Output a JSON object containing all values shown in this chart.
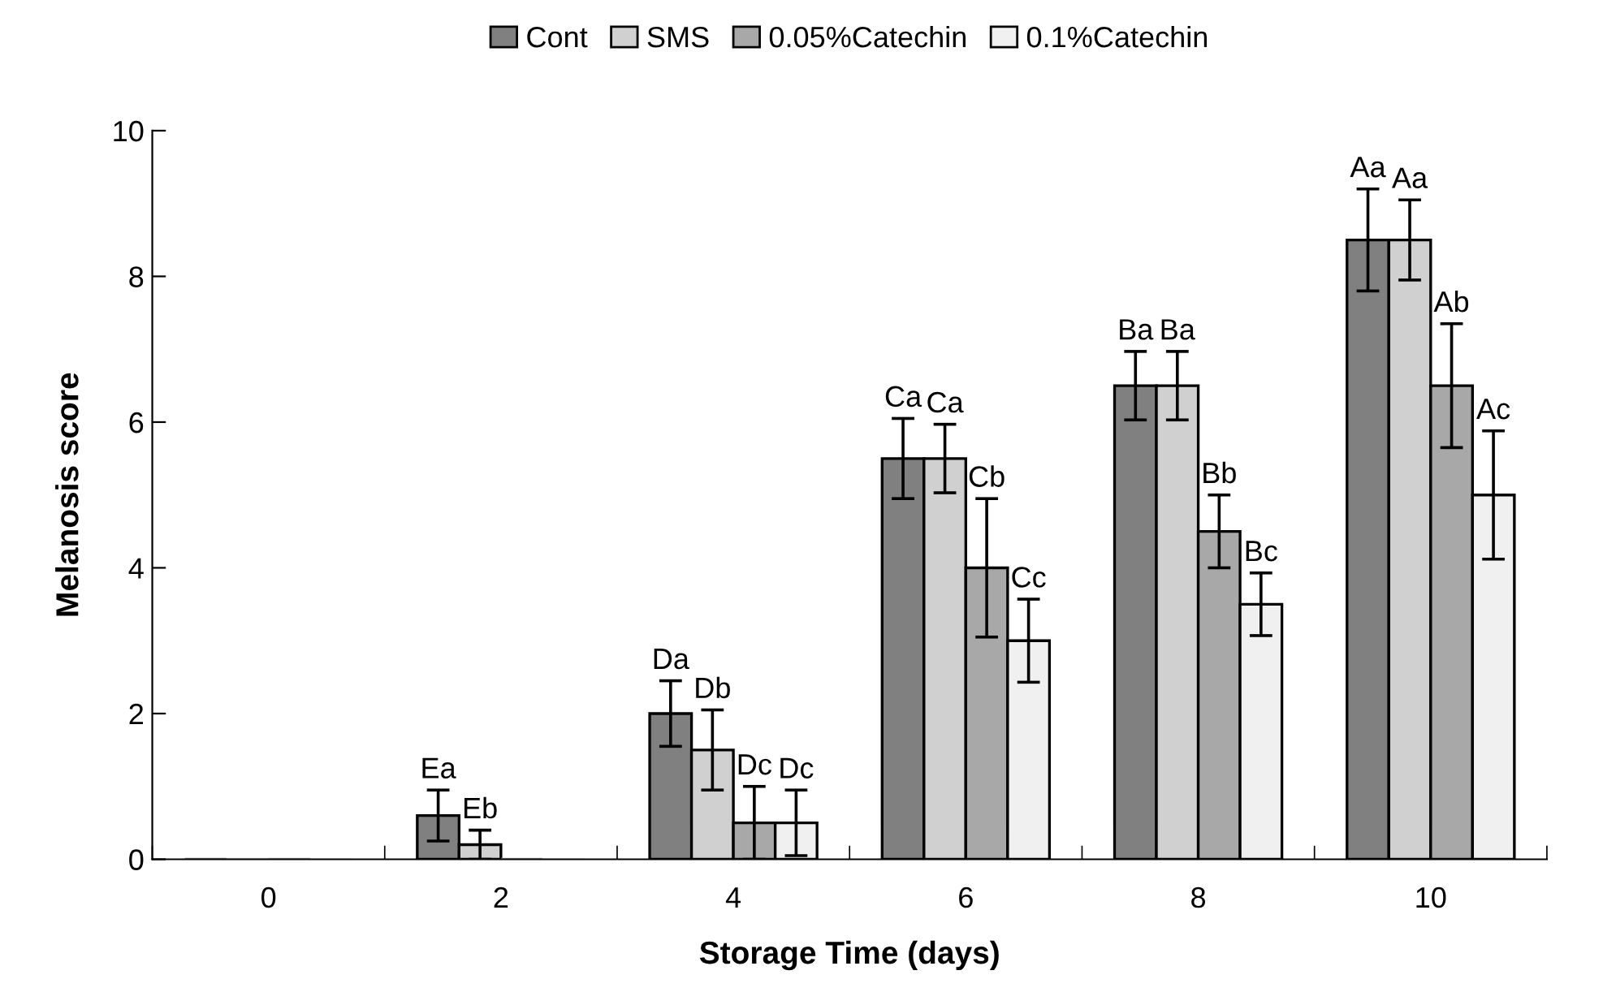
{
  "chart_data": {
    "type": "bar",
    "xlabel": "Storage Time (days)",
    "ylabel": "Melanosis score",
    "categories": [
      "0",
      "2",
      "4",
      "6",
      "8",
      "10"
    ],
    "series": [
      {
        "name": "Cont",
        "color": "#808080",
        "values": [
          0,
          0.6,
          2.0,
          5.5,
          6.5,
          8.5
        ],
        "errors": [
          null,
          0.35,
          0.45,
          0.55,
          0.47,
          0.7
        ],
        "value_labels": [
          null,
          "Ea",
          "Da",
          "Ca",
          "Ba",
          "Aa"
        ]
      },
      {
        "name": "SMS",
        "color": "#d0d0d0",
        "values": [
          0,
          0.2,
          1.5,
          5.5,
          6.5,
          8.5
        ],
        "errors": [
          null,
          0.2,
          0.55,
          0.47,
          0.47,
          0.55
        ],
        "value_labels": [
          null,
          "Eb",
          "Db",
          "Ca",
          "Ba",
          "Aa"
        ]
      },
      {
        "name": "0.05%Catechin",
        "color": "#a8a8a8",
        "values": [
          0,
          0,
          0.5,
          4.0,
          4.5,
          6.5
        ],
        "errors": [
          null,
          null,
          0.5,
          0.95,
          0.5,
          0.85
        ],
        "value_labels": [
          null,
          null,
          "Dc",
          "Cb",
          "Bb",
          "Ab"
        ]
      },
      {
        "name": "0.1%Catechin",
        "color": "#f0f0f0",
        "values": [
          0,
          0,
          0.5,
          3.0,
          3.5,
          5.0
        ],
        "errors": [
          null,
          null,
          0.45,
          0.57,
          0.43,
          0.88
        ],
        "value_labels": [
          null,
          null,
          "Dc",
          "Cc",
          "Bc",
          "Ac"
        ]
      }
    ],
    "ylim": [
      0,
      10
    ],
    "yticks": [
      0,
      2,
      4,
      6,
      8,
      10
    ],
    "grid": false,
    "legend": "top"
  }
}
